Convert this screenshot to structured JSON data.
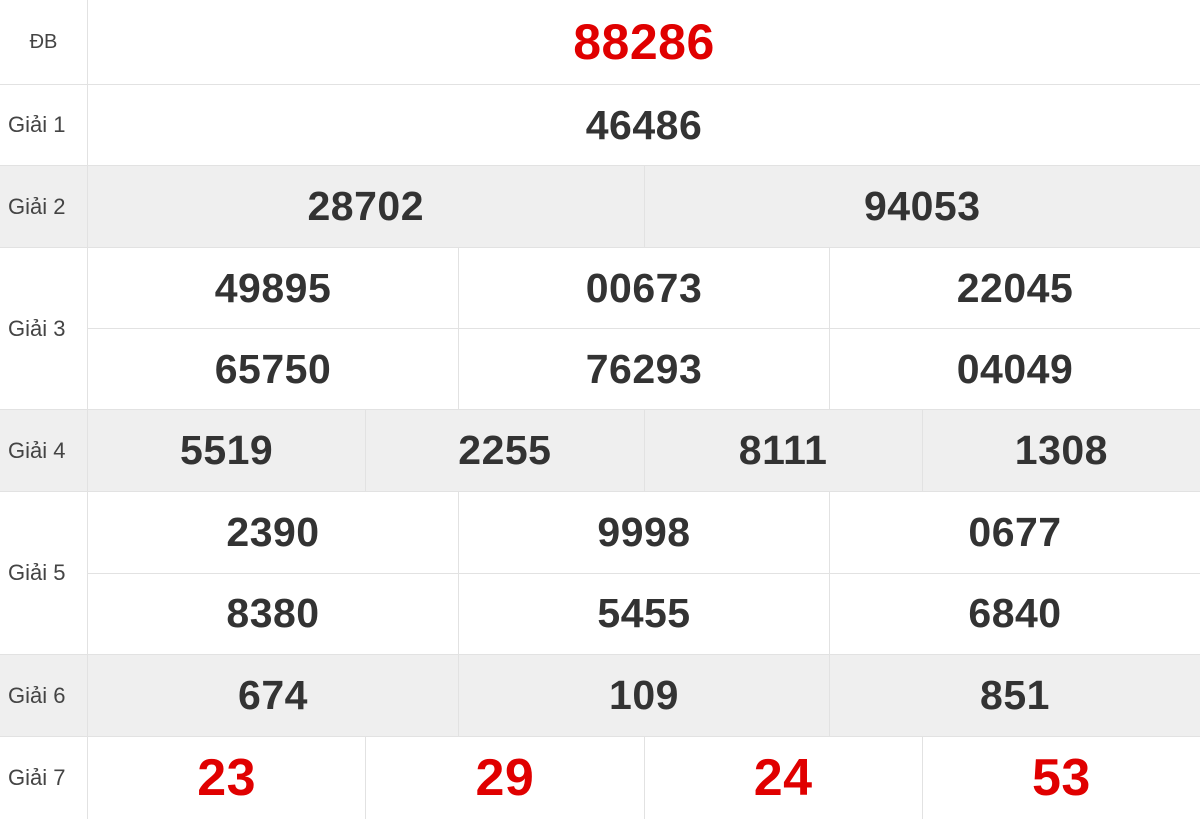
{
  "colors": {
    "special": "#e00000",
    "text": "#333333",
    "stripe": "#efefef"
  },
  "rows": [
    {
      "label": "ĐB",
      "numbers": [
        "88286"
      ]
    },
    {
      "label": "Giải 1",
      "numbers": [
        "46486"
      ]
    },
    {
      "label": "Giải 2",
      "numbers": [
        "28702",
        "94053"
      ]
    },
    {
      "label": "Giải 3",
      "numbers": [
        "49895",
        "00673",
        "22045",
        "65750",
        "76293",
        "04049"
      ]
    },
    {
      "label": "Giải 4",
      "numbers": [
        "5519",
        "2255",
        "8111",
        "1308"
      ]
    },
    {
      "label": "Giải 5",
      "numbers": [
        "2390",
        "9998",
        "0677",
        "8380",
        "5455",
        "6840"
      ]
    },
    {
      "label": "Giải 6",
      "numbers": [
        "674",
        "109",
        "851"
      ]
    },
    {
      "label": "Giải 7",
      "numbers": [
        "23",
        "29",
        "24",
        "53"
      ]
    }
  ]
}
